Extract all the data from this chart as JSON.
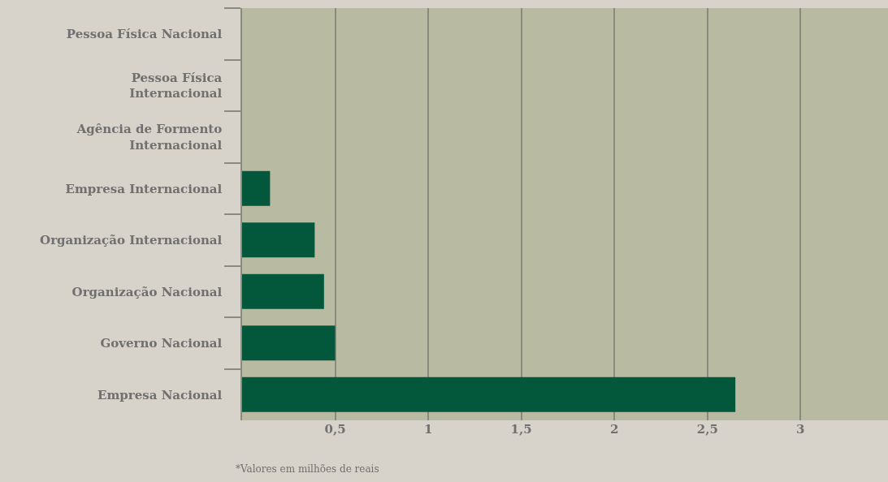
{
  "chart_data": {
    "type": "bar",
    "orientation": "horizontal",
    "categories": [
      "Pessoa Física Nacional",
      "Pessoa Física Internacional",
      "Agência de Formento Internacional",
      "Empresa Internacional",
      "Organização Internacional",
      "Organização Nacional",
      "Governo Nacional",
      "Empresa Nacional"
    ],
    "values": [
      0,
      0,
      0,
      0.15,
      0.39,
      0.44,
      0.5,
      2.65
    ],
    "color": "#03573a",
    "xlim": [
      0,
      3.47
    ],
    "xticks": [
      {
        "value": 0.5,
        "label": "0,5"
      },
      1,
      {
        "value": 1.5,
        "label": "1,5"
      },
      2,
      {
        "value": 2.5,
        "label": "2,5"
      },
      3
    ],
    "grid": "x",
    "annotations": [
      "*Valores em milhões de reais"
    ]
  }
}
